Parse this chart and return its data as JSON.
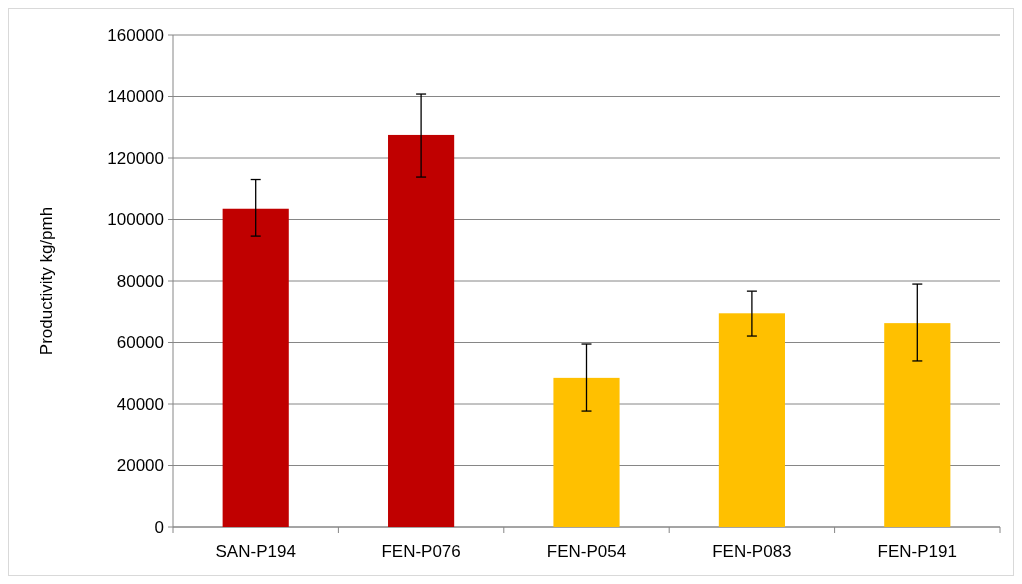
{
  "chart_data": {
    "type": "bar",
    "ylabel": "Productivity kg/pmh",
    "categories": [
      "SAN-P194",
      "FEN-P076",
      "FEN-P054",
      "FEN-P083",
      "FEN-P191"
    ],
    "values": [
      103500,
      127500,
      48500,
      69500,
      66300
    ],
    "colors": [
      "#c00000",
      "#c00000",
      "#ffc000",
      "#ffc000",
      "#ffc000"
    ],
    "errors": [
      [
        94600,
        113000
      ],
      [
        113800,
        140800
      ],
      [
        37700,
        59500
      ],
      [
        62100,
        76700
      ],
      [
        54000,
        79000
      ]
    ],
    "ylim": [
      0,
      160000
    ],
    "yticks": [
      0,
      20000,
      40000,
      60000,
      80000,
      100000,
      120000,
      140000,
      160000
    ],
    "grid": "y"
  }
}
